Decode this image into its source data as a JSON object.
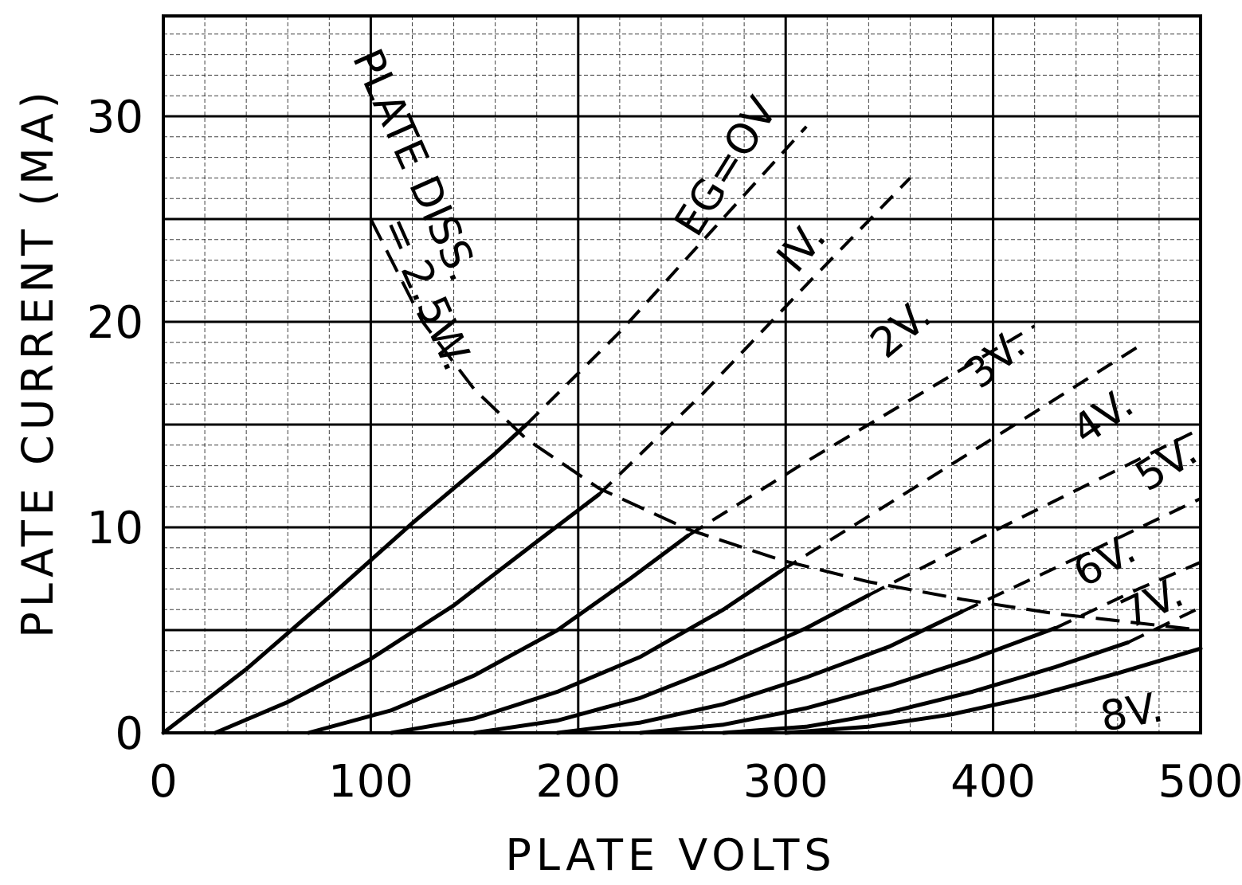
{
  "chart_data": {
    "type": "line",
    "title": "",
    "xlabel": "PLATE VOLTS",
    "ylabel": "PLATE CURRENT (MA)",
    "xlim": [
      0,
      500
    ],
    "ylim": [
      0,
      35
    ],
    "grid": true,
    "x_ticks": [
      {
        "value": 0,
        "label": "0"
      },
      {
        "value": 100,
        "label": "100"
      },
      {
        "value": 200,
        "label": "200"
      },
      {
        "value": 300,
        "label": "300"
      },
      {
        "value": 400,
        "label": "400"
      },
      {
        "value": 500,
        "label": "500"
      }
    ],
    "y_ticks": [
      {
        "value": 0,
        "label": "0"
      },
      {
        "value": 10,
        "label": "10"
      },
      {
        "value": 20,
        "label": "20"
      },
      {
        "value": 30,
        "label": "30"
      }
    ],
    "series": [
      {
        "name": "EG=OV",
        "x": [
          0,
          40,
          80,
          120,
          160,
          175
        ],
        "y": [
          0,
          3.1,
          6.6,
          10.2,
          13.6,
          15.0
        ],
        "dashed_x": [
          175,
          220,
          265,
          310
        ],
        "dashed_y": [
          15.0,
          19.5,
          24.5,
          29.5
        ]
      },
      {
        "name": "IV.",
        "x": [
          25,
          60,
          100,
          140,
          180,
          210
        ],
        "y": [
          0,
          1.5,
          3.6,
          6.2,
          9.3,
          11.6
        ],
        "dashed_x": [
          210,
          260,
          310,
          360
        ],
        "dashed_y": [
          11.6,
          16.5,
          21.8,
          27.0
        ]
      },
      {
        "name": "2V.",
        "x": [
          70,
          110,
          150,
          190,
          225,
          253
        ],
        "y": [
          0,
          1.1,
          2.8,
          5.0,
          7.5,
          9.6
        ],
        "dashed_x": [
          253,
          310,
          370,
          420
        ],
        "dashed_y": [
          9.6,
          13.2,
          16.8,
          19.8
        ]
      },
      {
        "name": "3V.",
        "x": [
          110,
          150,
          190,
          230,
          270,
          298
        ],
        "y": [
          0,
          0.7,
          2.0,
          3.7,
          6.0,
          7.9
        ],
        "dashed_x": [
          298,
          360,
          420,
          470
        ],
        "dashed_y": [
          7.9,
          11.8,
          15.6,
          18.8
        ]
      },
      {
        "name": "4V.",
        "x": [
          150,
          190,
          230,
          270,
          310,
          340
        ],
        "y": [
          0,
          0.6,
          1.7,
          3.3,
          5.1,
          6.7
        ],
        "dashed_x": [
          340,
          400,
          460,
          500
        ],
        "dashed_y": [
          6.7,
          9.8,
          12.8,
          14.8
        ]
      },
      {
        "name": "5V.",
        "x": [
          190,
          230,
          270,
          310,
          350,
          385
        ],
        "y": [
          0,
          0.5,
          1.4,
          2.7,
          4.2,
          5.9
        ],
        "dashed_x": [
          385,
          440,
          500
        ],
        "dashed_y": [
          5.9,
          8.5,
          11.4
        ]
      },
      {
        "name": "6V.",
        "x": [
          230,
          270,
          310,
          350,
          390,
          430
        ],
        "y": [
          0,
          0.4,
          1.2,
          2.3,
          3.6,
          5.1
        ],
        "dashed_x": [
          430,
          470,
          500
        ],
        "dashed_y": [
          5.1,
          7.0,
          8.3
        ]
      },
      {
        "name": "7V.",
        "x": [
          270,
          310,
          350,
          390,
          430,
          465
        ],
        "y": [
          0,
          0.3,
          1.0,
          2.0,
          3.2,
          4.4
        ],
        "dashed_x": [
          465,
          500
        ],
        "dashed_y": [
          4.4,
          6.1
        ]
      },
      {
        "name": "8V.",
        "x": [
          300,
          340,
          380,
          420,
          460,
          500
        ],
        "y": [
          0,
          0.3,
          0.9,
          1.8,
          2.9,
          4.1
        ],
        "dashed_x": [],
        "dashed_y": []
      }
    ],
    "dissipation_curve": {
      "label_line1": "PLATE DISS.",
      "label_line2": "= 2.5W.",
      "x": [
        100,
        125,
        150,
        175,
        210,
        253,
        298,
        340,
        385,
        430,
        465,
        500
      ],
      "y": [
        25,
        20,
        16.7,
        14.3,
        11.9,
        9.9,
        8.4,
        7.35,
        6.5,
        5.8,
        5.4,
        5.0
      ]
    }
  }
}
